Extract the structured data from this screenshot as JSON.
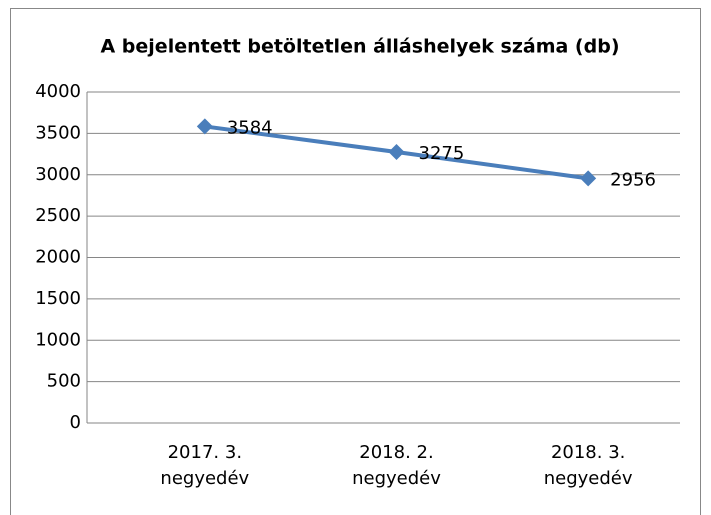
{
  "chart_data": {
    "type": "line",
    "title": "A bejelentett betöltetlen álláshelyek száma (db)",
    "categories": [
      "2017. 3. negyedév",
      "2018. 2. negyedév",
      "2018. 3. negyedév"
    ],
    "series": [
      {
        "name": "A bejelentett betöltetlen álláshelyek száma (db)",
        "color": "#4a7ebb",
        "values": [
          3584,
          3275,
          2956
        ]
      }
    ],
    "ylim": [
      0,
      4000
    ],
    "yticks": [
      0,
      500,
      1000,
      1500,
      2000,
      2500,
      3000,
      3500,
      4000
    ],
    "grid": true
  }
}
